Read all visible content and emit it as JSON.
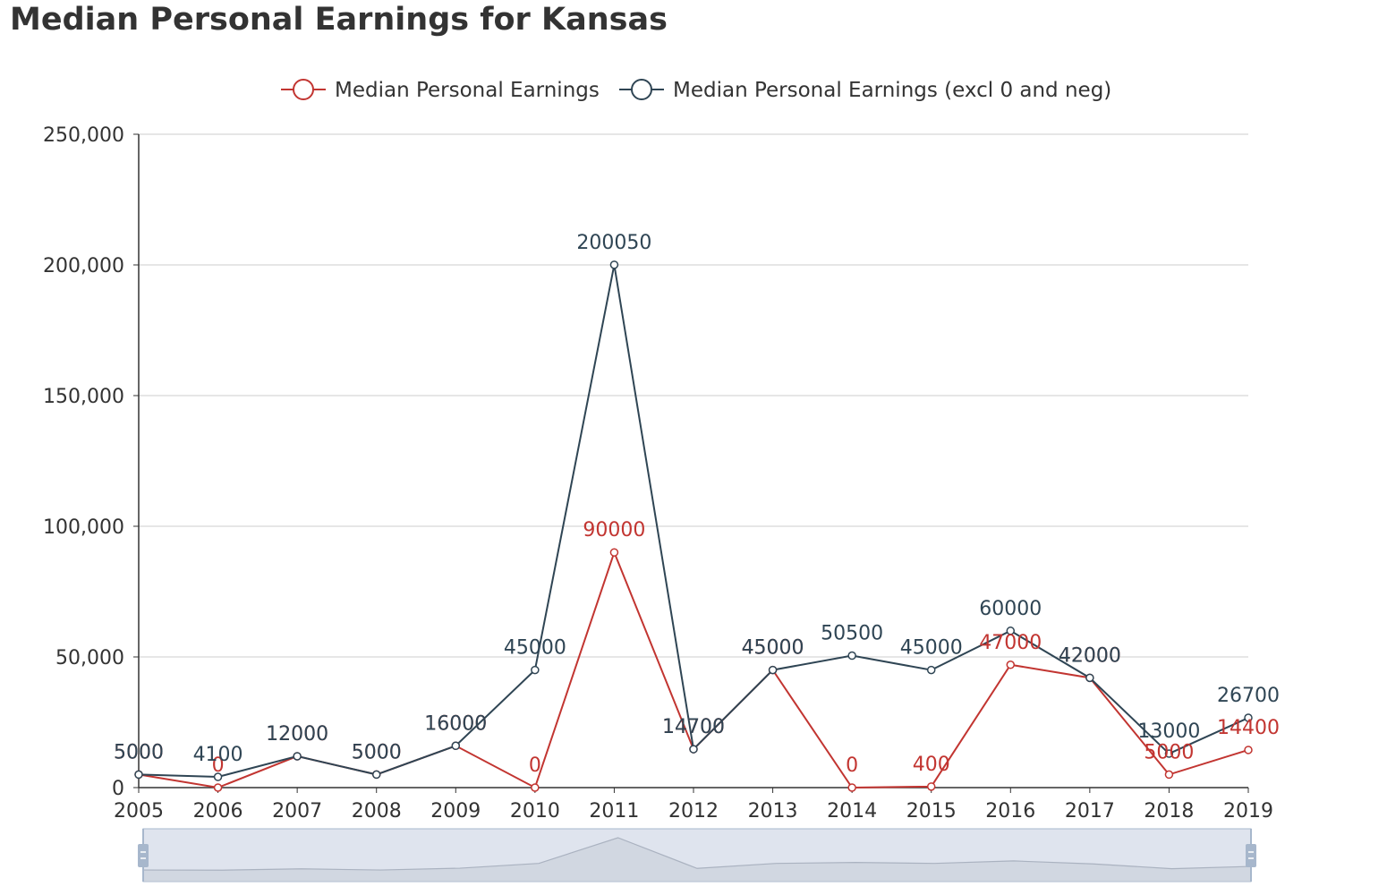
{
  "title": "Median Personal Earnings for Kansas",
  "colors": {
    "series_1": "#c23531",
    "series_2": "#2f4554",
    "axis": "#333333",
    "grid": "#cccccc",
    "datazoom_fill": "#dfe4ee",
    "datazoom_border": "#a7b7cc"
  },
  "chart_data": {
    "type": "line",
    "title": "Median Personal Earnings for Kansas",
    "x": [
      2005,
      2006,
      2007,
      2008,
      2009,
      2010,
      2011,
      2012,
      2013,
      2014,
      2015,
      2016,
      2017,
      2018,
      2019
    ],
    "series": [
      {
        "name": "Median Personal Earnings",
        "values": [
          5000,
          0,
          12000,
          5000,
          16000,
          0,
          90000,
          14700,
          45000,
          0,
          400,
          47000,
          42000,
          5000,
          14400
        ]
      },
      {
        "name": "Median Personal Earnings (excl 0 and neg)",
        "values": [
          5000,
          4100,
          12000,
          5000,
          16000,
          45000,
          200050,
          14700,
          45000,
          50500,
          45000,
          60000,
          42000,
          13000,
          26700
        ]
      }
    ],
    "ylim": [
      0,
      250000
    ],
    "yticks": [
      0,
      50000,
      100000,
      150000,
      200000,
      250000
    ],
    "ytick_labels": [
      "0",
      "50,000",
      "100,000",
      "150,000",
      "200,000",
      "250,000"
    ],
    "grid": true,
    "legend_position": "top-center",
    "data_labels": true,
    "data_zoom_slider": true
  }
}
